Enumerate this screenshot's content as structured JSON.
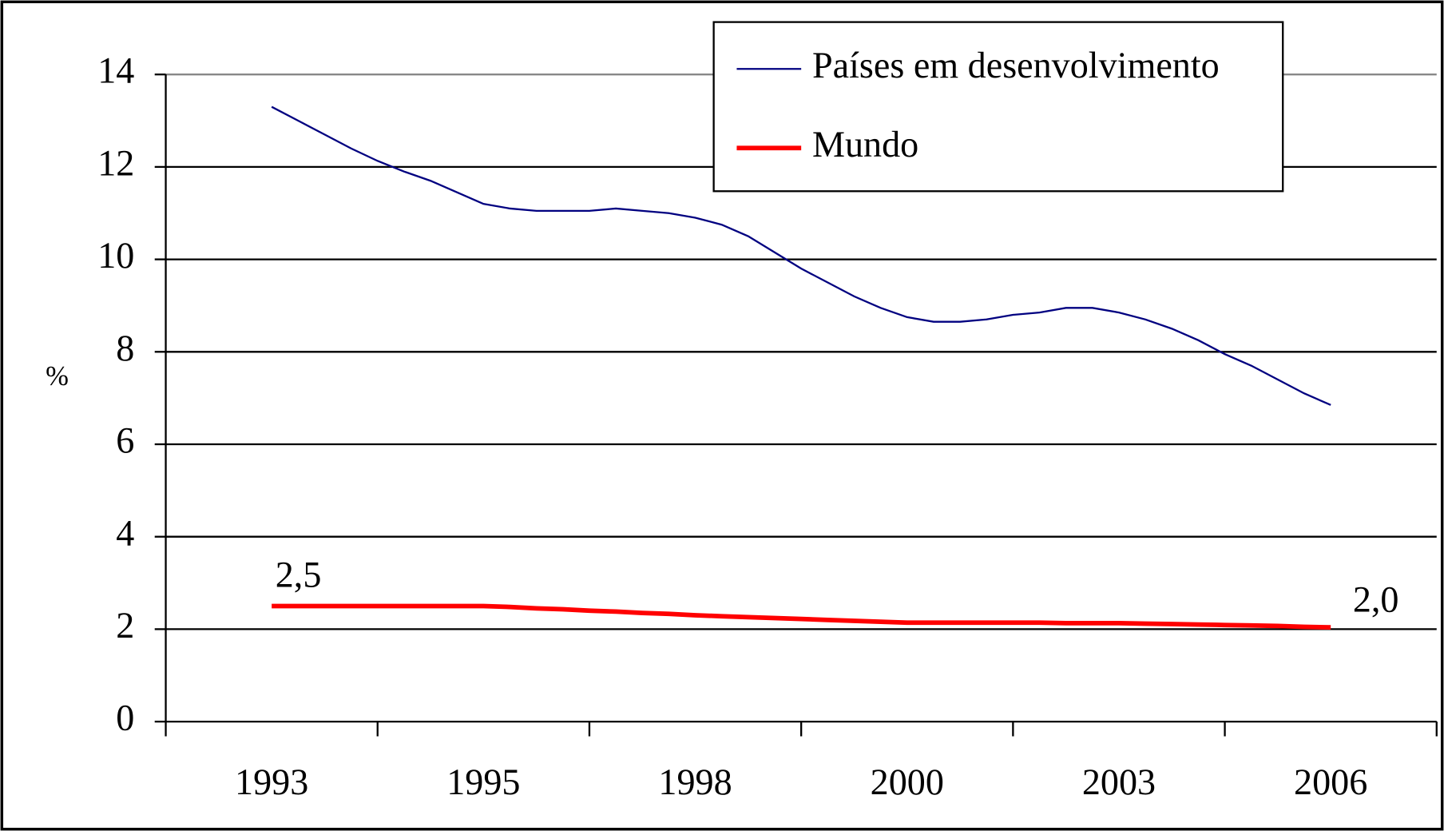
{
  "chart_data": {
    "type": "line",
    "y_label": "%",
    "categories": [
      "1993",
      null,
      null,
      null,
      null,
      null,
      null,
      null,
      "1995",
      null,
      null,
      null,
      null,
      null,
      null,
      null,
      "1998",
      null,
      null,
      null,
      null,
      null,
      null,
      null,
      "2000",
      null,
      null,
      null,
      null,
      null,
      null,
      null,
      "2003",
      null,
      null,
      null,
      null,
      null,
      null,
      null,
      "2006"
    ],
    "series": [
      {
        "name": "Países em desenvolvimento",
        "color": "#000080",
        "width": 2,
        "values": [
          13.3,
          13.0,
          12.7,
          12.4,
          12.13,
          11.9,
          11.7,
          11.45,
          11.2,
          11.1,
          11.05,
          11.05,
          11.05,
          11.1,
          11.05,
          11.0,
          10.9,
          10.75,
          10.5,
          10.15,
          9.8,
          9.5,
          9.2,
          8.95,
          8.75,
          8.65,
          8.65,
          8.7,
          8.8,
          8.85,
          8.95,
          8.95,
          8.85,
          8.7,
          8.5,
          8.25,
          7.95,
          7.7,
          7.4,
          7.1,
          6.85
        ]
      },
      {
        "name": "Mundo",
        "color": "#ff0000",
        "width": 5,
        "values": [
          2.5,
          2.5,
          2.5,
          2.5,
          2.5,
          2.5,
          2.5,
          2.5,
          2.5,
          2.48,
          2.45,
          2.43,
          2.4,
          2.38,
          2.35,
          2.33,
          2.3,
          2.28,
          2.26,
          2.24,
          2.22,
          2.2,
          2.18,
          2.16,
          2.14,
          2.14,
          2.14,
          2.14,
          2.14,
          2.14,
          2.13,
          2.13,
          2.13,
          2.12,
          2.11,
          2.1,
          2.09,
          2.08,
          2.07,
          2.05,
          2.04
        ],
        "value_labels": [
          "2,5",
          null,
          null,
          null,
          null,
          null,
          null,
          null,
          null,
          null,
          null,
          null,
          null,
          null,
          null,
          null,
          null,
          null,
          null,
          null,
          null,
          null,
          null,
          null,
          null,
          null,
          null,
          null,
          null,
          null,
          null,
          null,
          null,
          null,
          null,
          null,
          null,
          null,
          null,
          null,
          "2,0"
        ]
      }
    ],
    "ylim": [
      0,
      14
    ],
    "yticks": [
      0,
      2,
      4,
      6,
      8,
      10,
      12,
      14
    ],
    "grid": true,
    "legend": "top-right"
  }
}
